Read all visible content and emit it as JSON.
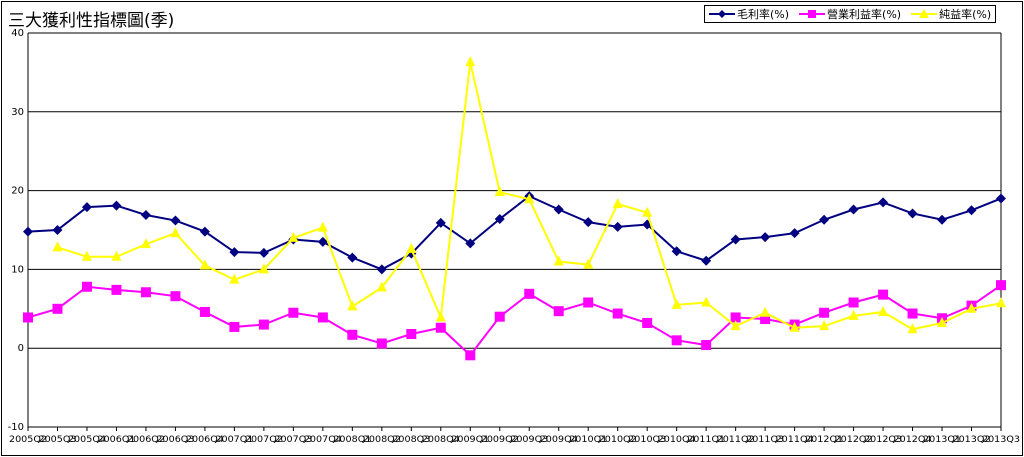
{
  "title": "三大獲利性指標圖(季)",
  "chart_data": {
    "type": "line",
    "title": "三大獲利性指標圖(季)",
    "xlabel": "",
    "ylabel": "",
    "ylim": [
      -10,
      40
    ],
    "yticks": [
      -10,
      0,
      10,
      20,
      30,
      40
    ],
    "grid": "horizontal",
    "legend_position": "top-right",
    "categories": [
      "2005Q2",
      "2005Q3",
      "2005Q4",
      "2006Q1",
      "2006Q2",
      "2006Q3",
      "2006Q4",
      "2007Q1",
      "2007Q2",
      "2007Q3",
      "2007Q4",
      "2008Q1",
      "2008Q2",
      "2008Q3",
      "2008Q4",
      "2009Q1",
      "2009Q2",
      "2009Q3",
      "2009Q4",
      "2010Q1",
      "2010Q2",
      "2010Q3",
      "2010Q4",
      "2011Q1",
      "2011Q2",
      "2011Q3",
      "2011Q4",
      "2012Q1",
      "2012Q2",
      "2012Q3",
      "2012Q4",
      "2013Q1",
      "2013Q2",
      "2013Q3"
    ],
    "series": [
      {
        "name": "毛利率(%)",
        "color": "#000080",
        "marker": "diamond",
        "values": [
          14.8,
          15.0,
          17.9,
          18.1,
          16.9,
          16.2,
          14.8,
          12.2,
          12.1,
          13.8,
          13.5,
          11.5,
          10.0,
          12.0,
          15.9,
          13.3,
          16.4,
          19.3,
          17.6,
          16.0,
          15.4,
          15.7,
          12.3,
          11.1,
          13.8,
          14.1,
          14.6,
          16.3,
          17.6,
          18.5,
          17.1,
          16.3,
          17.5,
          19.0
        ]
      },
      {
        "name": "營業利益率(%)",
        "color": "#ff00ff",
        "marker": "square",
        "values": [
          3.9,
          5.0,
          7.8,
          7.4,
          7.1,
          6.6,
          4.6,
          2.7,
          3.0,
          4.5,
          3.9,
          1.7,
          0.6,
          1.8,
          2.6,
          -0.9,
          4.0,
          6.9,
          4.7,
          5.8,
          4.4,
          3.2,
          1.0,
          0.4,
          3.9,
          3.7,
          3.0,
          4.5,
          5.8,
          6.8,
          4.4,
          3.8,
          5.4,
          8.0
        ]
      },
      {
        "name": "純益率(%)",
        "color": "#ffff00",
        "marker": "triangle",
        "values": [
          null,
          12.8,
          11.6,
          11.6,
          13.2,
          14.6,
          10.5,
          8.7,
          10.0,
          14.0,
          15.3,
          5.3,
          7.7,
          12.6,
          3.9,
          36.3,
          19.8,
          18.9,
          11.0,
          10.6,
          18.3,
          17.2,
          5.5,
          5.8,
          2.8,
          4.5,
          2.6,
          2.8,
          4.1,
          4.6,
          2.4,
          3.2,
          5.0,
          5.7
        ]
      }
    ]
  }
}
